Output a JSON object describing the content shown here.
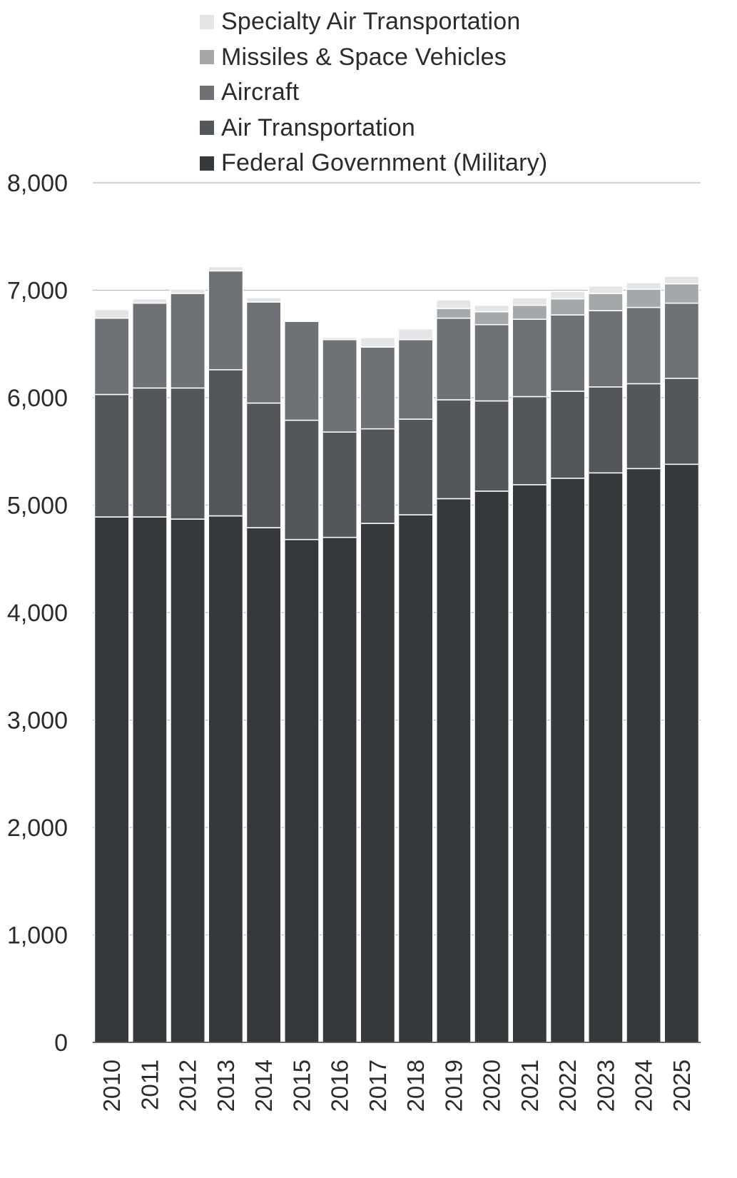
{
  "chart_data": {
    "type": "bar",
    "stacked": true,
    "categories": [
      "2010",
      "2011",
      "2012",
      "2013",
      "2014",
      "2015",
      "2016",
      "2017",
      "2018",
      "2019",
      "2020",
      "2021",
      "2022",
      "2023",
      "2024",
      "2025"
    ],
    "series": [
      {
        "name": "Federal Government (Military)",
        "color": "#36393c",
        "values": [
          4890,
          4890,
          4870,
          4900,
          4790,
          4680,
          4700,
          4830,
          4910,
          5060,
          5130,
          5190,
          5250,
          5300,
          5340,
          5380
        ]
      },
      {
        "name": "Air Transportation",
        "color": "#53575b",
        "values": [
          1140,
          1200,
          1220,
          1360,
          1160,
          1110,
          980,
          880,
          890,
          920,
          840,
          820,
          810,
          800,
          790,
          800
        ]
      },
      {
        "name": "Aircraft",
        "color": "#6e7276",
        "values": [
          710,
          790,
          880,
          920,
          940,
          920,
          860,
          760,
          740,
          760,
          710,
          720,
          710,
          710,
          710,
          700
        ]
      },
      {
        "name": "Missiles & Space Vehicles",
        "color": "#a5a8ab",
        "values": [
          0,
          0,
          0,
          0,
          0,
          0,
          0,
          0,
          0,
          90,
          120,
          130,
          150,
          160,
          170,
          180
        ]
      },
      {
        "name": "Specialty Air Transportation",
        "color": "#e4e5e6",
        "values": [
          80,
          40,
          40,
          40,
          40,
          10,
          20,
          90,
          100,
          80,
          60,
          70,
          70,
          70,
          60,
          70
        ]
      }
    ],
    "ylim": [
      0,
      8000
    ],
    "yticks": [
      "8,000",
      "7,000",
      "6,000",
      "5,000",
      "4,000",
      "3,000",
      "2,000",
      "1,000",
      "0"
    ],
    "ytick_values": [
      8000,
      7000,
      6000,
      5000,
      4000,
      3000,
      2000,
      1000,
      0
    ],
    "grid": true,
    "legend_position": "top"
  }
}
